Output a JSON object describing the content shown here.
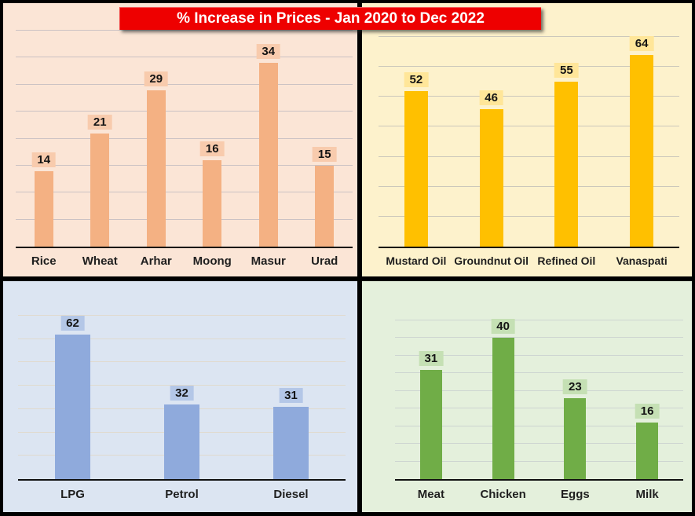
{
  "title": "% Increase in Prices - Jan 2020 to Dec 2022",
  "title_style": {
    "background": "#EE0000",
    "text_color": "#FFFFFF"
  },
  "chart_data": [
    {
      "type": "bar",
      "name": "grains-pulses",
      "categories": [
        "Rice",
        "Wheat",
        "Arhar",
        "Moong",
        "Masur",
        "Urad"
      ],
      "values": [
        14,
        21,
        29,
        16,
        34,
        15
      ],
      "ylim": [
        0,
        40
      ],
      "grid_step": 5,
      "grid": true,
      "legend": false,
      "data_labels": true,
      "colors": {
        "background": "#FBE5D6",
        "bar": "#F4B183",
        "value_tag": "#F8CBAD",
        "gridline": "#CBC2C4",
        "axis": "#111111",
        "text": "#1F1F1F"
      }
    },
    {
      "type": "bar",
      "name": "edible-oils",
      "categories": [
        "Mustard Oil",
        "Groundnut Oil",
        "Refined Oil",
        "Vanaspati"
      ],
      "values": [
        52,
        46,
        55,
        64
      ],
      "ylim": [
        0,
        70
      ],
      "grid_step": 10,
      "grid": true,
      "legend": false,
      "data_labels": true,
      "colors": {
        "background": "#FDF2CC",
        "bar": "#FFC000",
        "value_tag": "#FFE699",
        "gridline": "#CCC8BB",
        "axis": "#111111",
        "text": "#1F1F1F"
      }
    },
    {
      "type": "bar",
      "name": "fuels",
      "categories": [
        "LPG",
        "Petrol",
        "Diesel"
      ],
      "values": [
        62,
        32,
        31
      ],
      "ylim": [
        0,
        70
      ],
      "grid_step": 10,
      "grid": true,
      "legend": false,
      "data_labels": true,
      "colors": {
        "background": "#DCE5F2",
        "bar": "#8FAADC",
        "value_tag": "#B4C7E7",
        "gridline": "#E0DACE",
        "axis": "#111111",
        "text": "#1F1F1F"
      }
    },
    {
      "type": "bar",
      "name": "animal-products",
      "categories": [
        "Meat",
        "Chicken",
        "Eggs",
        "Milk"
      ],
      "values": [
        31,
        40,
        23,
        16
      ],
      "ylim": [
        0,
        45
      ],
      "grid_step": 5,
      "grid": true,
      "legend": false,
      "data_labels": true,
      "colors": {
        "background": "#E4F0DC",
        "bar": "#70AD47",
        "value_tag": "#C5E0B4",
        "gridline": "#CDD5D1",
        "axis": "#111111",
        "text": "#1F1F1F"
      }
    }
  ]
}
